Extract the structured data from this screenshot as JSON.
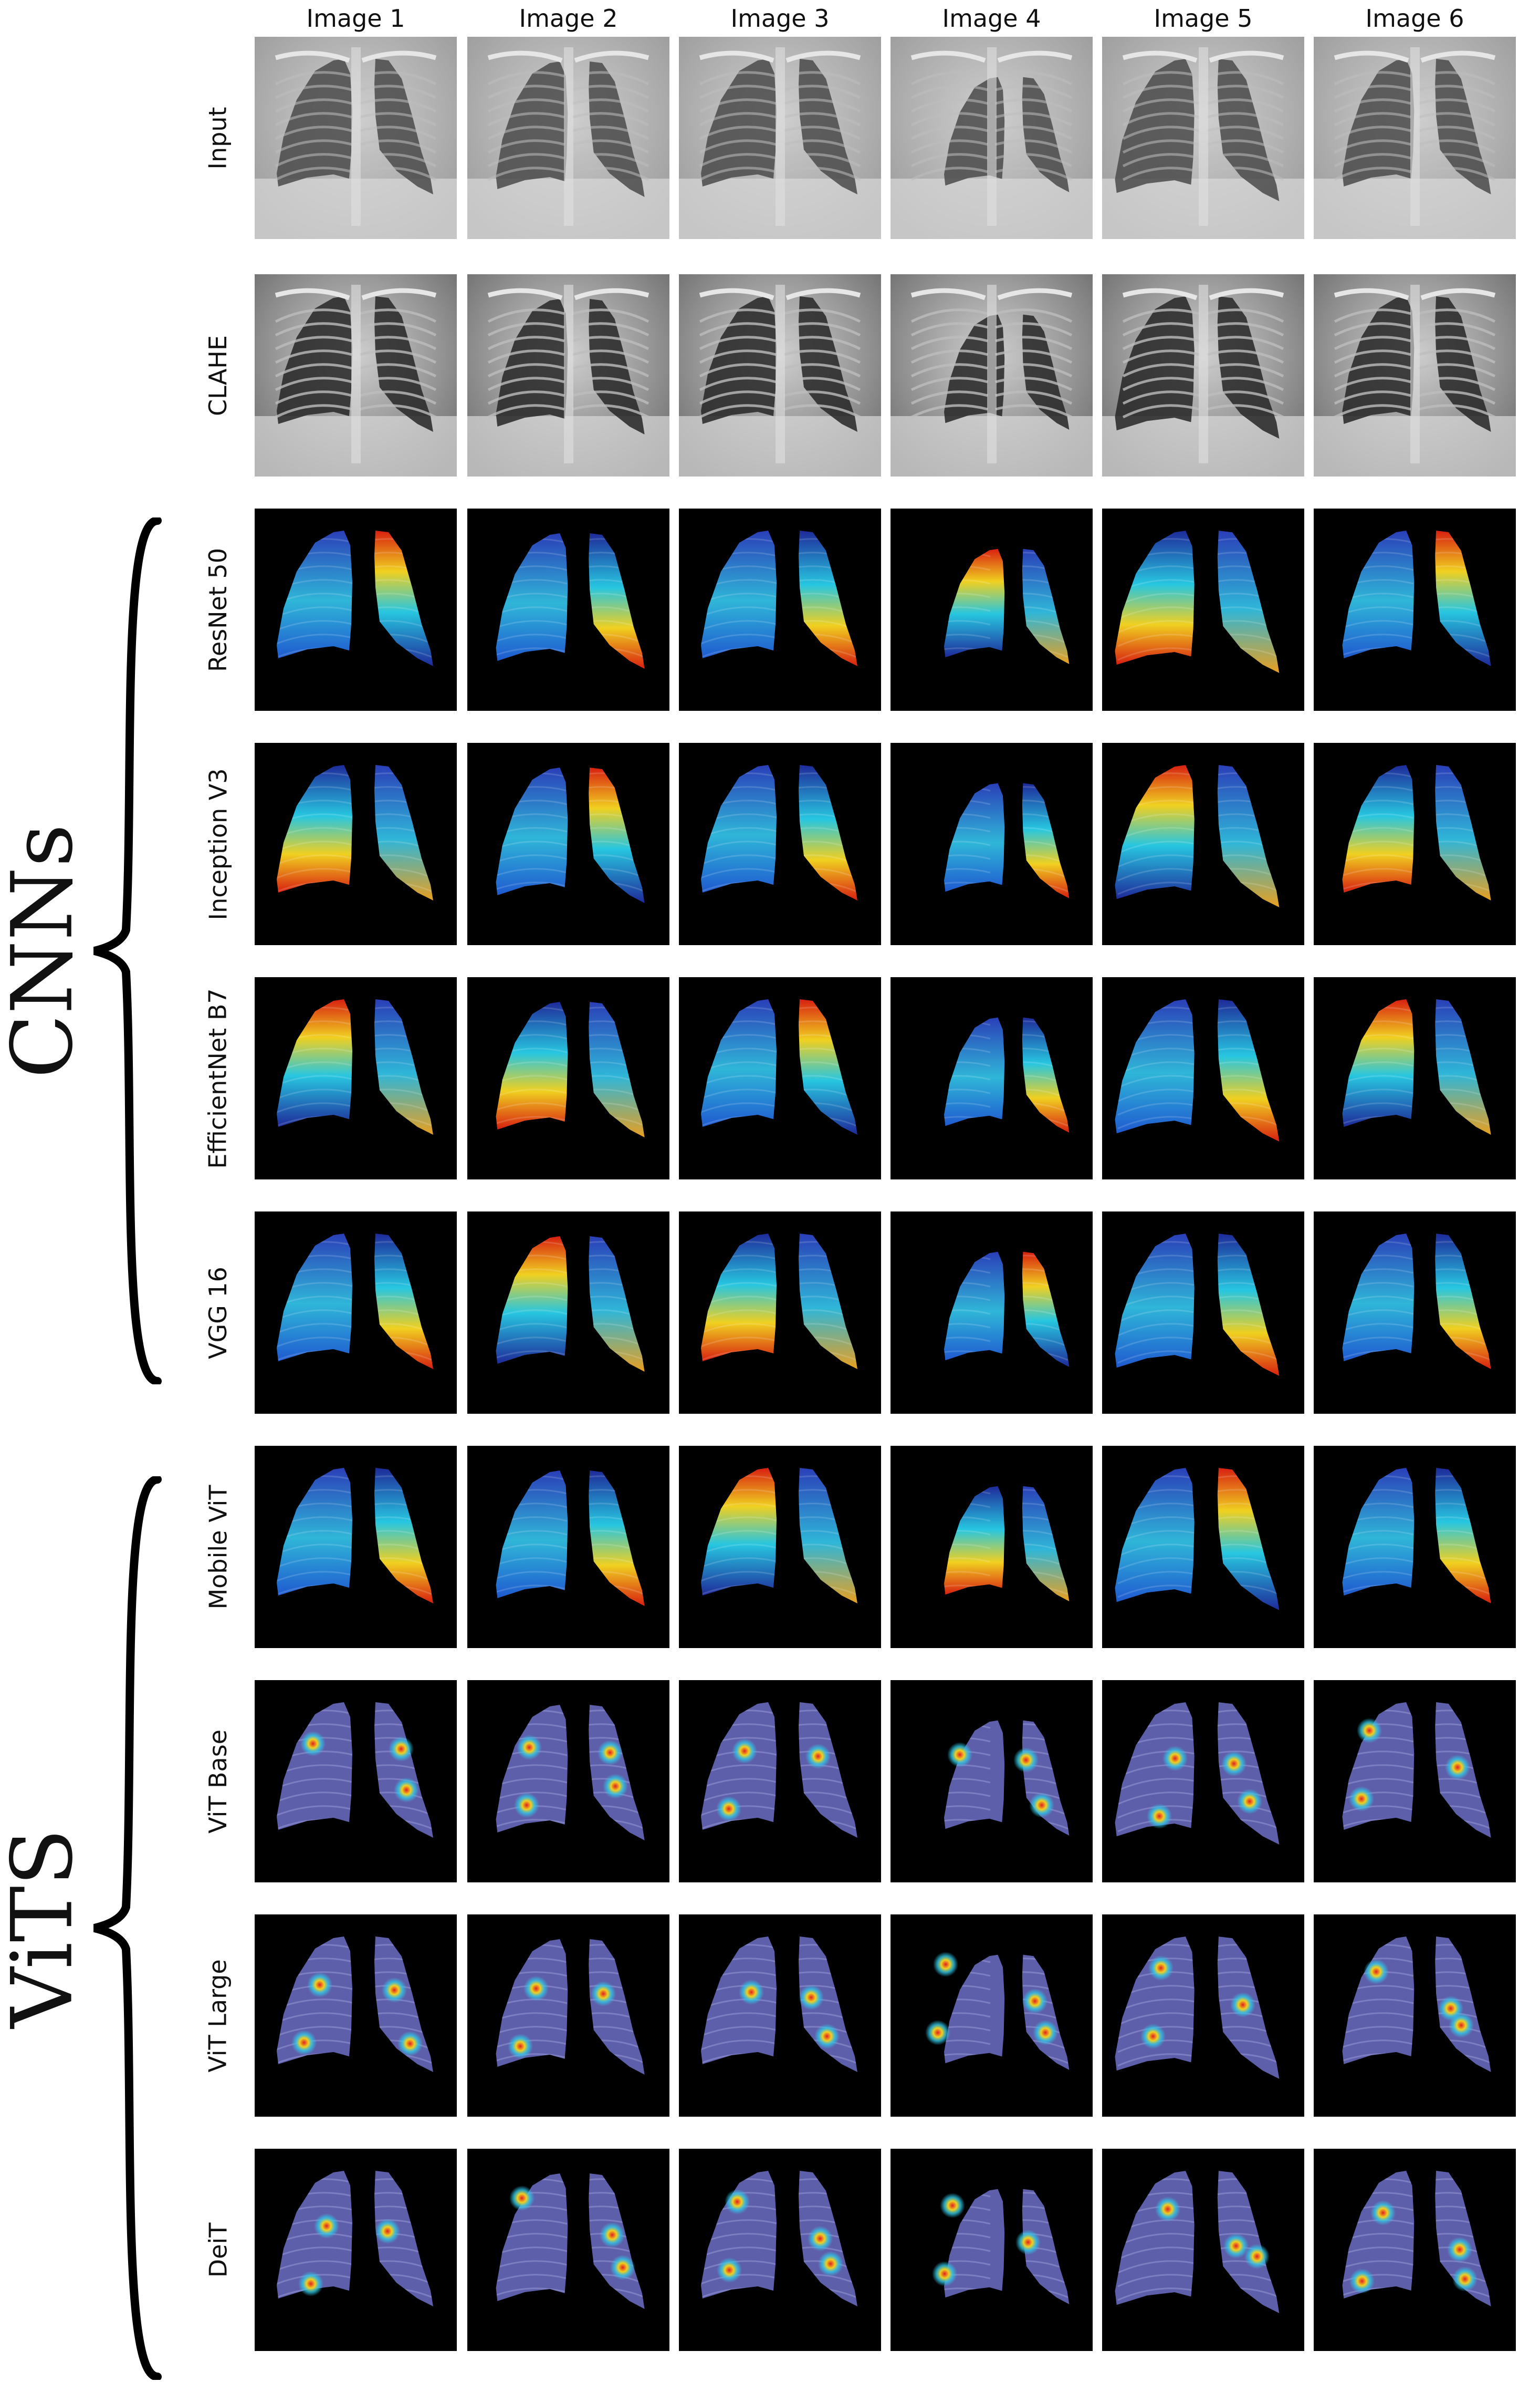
{
  "columns": [
    "Image 1",
    "Image 2",
    "Image 3",
    "Image 4",
    "Image 5",
    "Image 6"
  ],
  "rows": [
    {
      "label": "Input",
      "kind": "xray"
    },
    {
      "label": "CLAHE",
      "kind": "clahe"
    },
    {
      "label": "ResNet 50",
      "kind": "cam"
    },
    {
      "label": "Inception V3",
      "kind": "cam"
    },
    {
      "label": "EfficientNet B7",
      "kind": "cam"
    },
    {
      "label": "VGG 16",
      "kind": "cam"
    },
    {
      "label": "Mobile ViT",
      "kind": "cam"
    },
    {
      "label": "ViT Base",
      "kind": "attn"
    },
    {
      "label": "ViT Large",
      "kind": "attn"
    },
    {
      "label": "DeiT",
      "kind": "attn"
    }
  ],
  "groups": [
    {
      "label": "CNNs",
      "rows": [
        "ResNet 50",
        "Inception V3",
        "EfficientNet B7",
        "VGG 16"
      ]
    },
    {
      "label": "ViTS",
      "rows": [
        "Mobile ViT",
        "ViT Base",
        "ViT Large",
        "DeiT"
      ]
    }
  ],
  "colors": {
    "background": "#ffffff",
    "tile_background": "#000000",
    "heatmap_low": "#1e2a9a",
    "heatmap_mid": "#27c6e0",
    "heatmap_high": "#d81f10",
    "attention_base": "#6e70c8"
  }
}
